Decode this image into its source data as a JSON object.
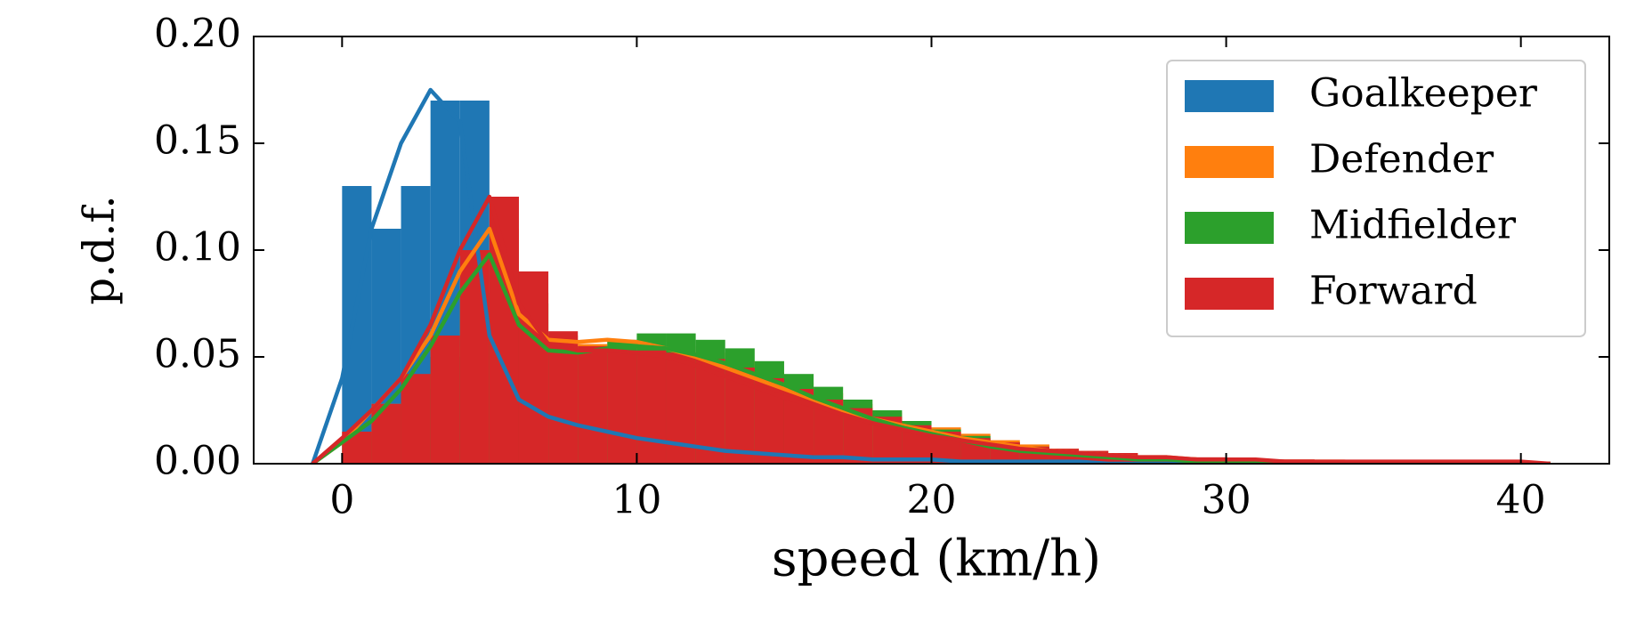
{
  "chart_data": {
    "type": "histogram",
    "xlabel": "speed (km/h)",
    "ylabel": "p.d.f.",
    "bins": [
      0,
      1,
      2,
      3,
      4,
      5,
      6,
      7,
      8,
      9,
      10,
      11,
      12,
      13,
      14,
      15,
      16,
      17,
      18,
      19,
      20,
      21,
      22,
      23,
      24,
      25,
      26,
      27,
      28,
      29,
      30,
      31,
      32,
      33,
      34,
      35,
      36,
      37,
      38,
      39,
      40,
      41
    ],
    "kde_x": [
      -1,
      0,
      1,
      2,
      3,
      4,
      5,
      6,
      7,
      8,
      9,
      10,
      11,
      12,
      13,
      14,
      15,
      16,
      17,
      18,
      19,
      20,
      21,
      22,
      23,
      24,
      25,
      26,
      27,
      28,
      29,
      30,
      31,
      32,
      33,
      34,
      35,
      36,
      37,
      38,
      39,
      40,
      41
    ],
    "series": [
      {
        "name": "Goalkeeper",
        "color": "#1f77b4",
        "values": [
          0.13,
          0.11,
          0.13,
          0.17,
          0.17,
          0.08,
          0.03,
          0.022,
          0.018,
          0.015,
          0.013,
          0.011,
          0.009,
          0.007,
          0.006,
          0.005,
          0.004,
          0.003,
          0.003,
          0.002,
          0.002,
          0.002,
          0.001,
          0.001,
          0.001,
          0.001,
          0.001,
          0,
          0,
          0,
          0,
          0,
          0,
          0,
          0,
          0,
          0,
          0,
          0,
          0,
          0
        ],
        "kde": [
          0,
          0.04,
          0.11,
          0.15,
          0.175,
          0.16,
          0.06,
          0.03,
          0.022,
          0.018,
          0.015,
          0.012,
          0.01,
          0.008,
          0.006,
          0.005,
          0.004,
          0.003,
          0.003,
          0.002,
          0.002,
          0.002,
          0.001,
          0.001,
          0.001,
          0.001,
          0.001,
          0,
          0,
          0,
          0,
          0,
          0,
          0,
          0,
          0,
          0,
          0,
          0,
          0,
          0,
          0,
          0
        ]
      },
      {
        "name": "Defender",
        "color": "#ff7f0e",
        "values": [
          0.015,
          0.028,
          0.04,
          0.055,
          0.085,
          0.11,
          0.08,
          0.06,
          0.056,
          0.057,
          0.057,
          0.055,
          0.052,
          0.048,
          0.043,
          0.038,
          0.033,
          0.028,
          0.024,
          0.02,
          0.017,
          0.014,
          0.011,
          0.009,
          0.007,
          0.006,
          0.005,
          0.004,
          0.003,
          0.002,
          0.002,
          0.001,
          0.001,
          0.001,
          0.001,
          0,
          0,
          0,
          0,
          0,
          0
        ],
        "kde": [
          0,
          0.01,
          0.025,
          0.04,
          0.06,
          0.09,
          0.11,
          0.07,
          0.058,
          0.057,
          0.058,
          0.057,
          0.054,
          0.05,
          0.045,
          0.04,
          0.035,
          0.03,
          0.025,
          0.021,
          0.018,
          0.015,
          0.012,
          0.01,
          0.008,
          0.006,
          0.005,
          0.004,
          0.003,
          0.003,
          0.002,
          0.002,
          0.001,
          0.001,
          0.001,
          0.001,
          0,
          0,
          0,
          0,
          0,
          0,
          0
        ]
      },
      {
        "name": "Midfielder",
        "color": "#2ca02c",
        "values": [
          0.013,
          0.024,
          0.035,
          0.05,
          0.08,
          0.1,
          0.075,
          0.055,
          0.053,
          0.058,
          0.061,
          0.061,
          0.058,
          0.054,
          0.048,
          0.042,
          0.036,
          0.03,
          0.025,
          0.02,
          0.016,
          0.013,
          0.01,
          0.008,
          0.006,
          0.005,
          0.004,
          0.003,
          0.002,
          0.002,
          0.001,
          0.001,
          0.001,
          0,
          0,
          0,
          0,
          0,
          0,
          0,
          0
        ],
        "kde": [
          0,
          0.01,
          0.02,
          0.035,
          0.055,
          0.08,
          0.098,
          0.065,
          0.053,
          0.052,
          0.054,
          0.055,
          0.054,
          0.051,
          0.047,
          0.042,
          0.037,
          0.031,
          0.026,
          0.021,
          0.017,
          0.014,
          0.011,
          0.008,
          0.006,
          0.005,
          0.004,
          0.003,
          0.002,
          0.002,
          0.001,
          0.001,
          0.001,
          0,
          0,
          0,
          0,
          0,
          0,
          0,
          0,
          0,
          0
        ]
      },
      {
        "name": "Forward",
        "color": "#d62728",
        "values": [
          0.015,
          0.028,
          0.042,
          0.06,
          0.1,
          0.125,
          0.09,
          0.062,
          0.055,
          0.053,
          0.053,
          0.052,
          0.049,
          0.045,
          0.04,
          0.035,
          0.03,
          0.026,
          0.022,
          0.018,
          0.015,
          0.012,
          0.01,
          0.008,
          0.007,
          0.006,
          0.005,
          0.004,
          0.003,
          0.003,
          0.002,
          0.002,
          0.002,
          0.001,
          0.001,
          0.001,
          0.001,
          0.001,
          0.001,
          0.001,
          0.001
        ],
        "kde": [
          0,
          0.012,
          0.025,
          0.04,
          0.065,
          0.1,
          0.125,
          0.075,
          0.056,
          0.053,
          0.053,
          0.052,
          0.05,
          0.046,
          0.041,
          0.036,
          0.031,
          0.027,
          0.023,
          0.019,
          0.016,
          0.013,
          0.011,
          0.009,
          0.007,
          0.006,
          0.005,
          0.004,
          0.003,
          0.003,
          0.002,
          0.002,
          0.002,
          0.001,
          0.001,
          0.001,
          0.001,
          0.001,
          0.001,
          0.001,
          0.001,
          0.001,
          0
        ]
      }
    ],
    "xlim": [
      -3,
      43
    ],
    "ylim": [
      0,
      0.2
    ],
    "xticks": [
      0,
      10,
      20,
      30,
      40
    ],
    "yticks": [
      {
        "value": 0,
        "label": "0.00"
      },
      0.05,
      {
        "value": 0.1,
        "label": "0.10"
      },
      0.15,
      {
        "value": 0.2,
        "label": "0.20"
      }
    ],
    "legend": "upper right"
  }
}
